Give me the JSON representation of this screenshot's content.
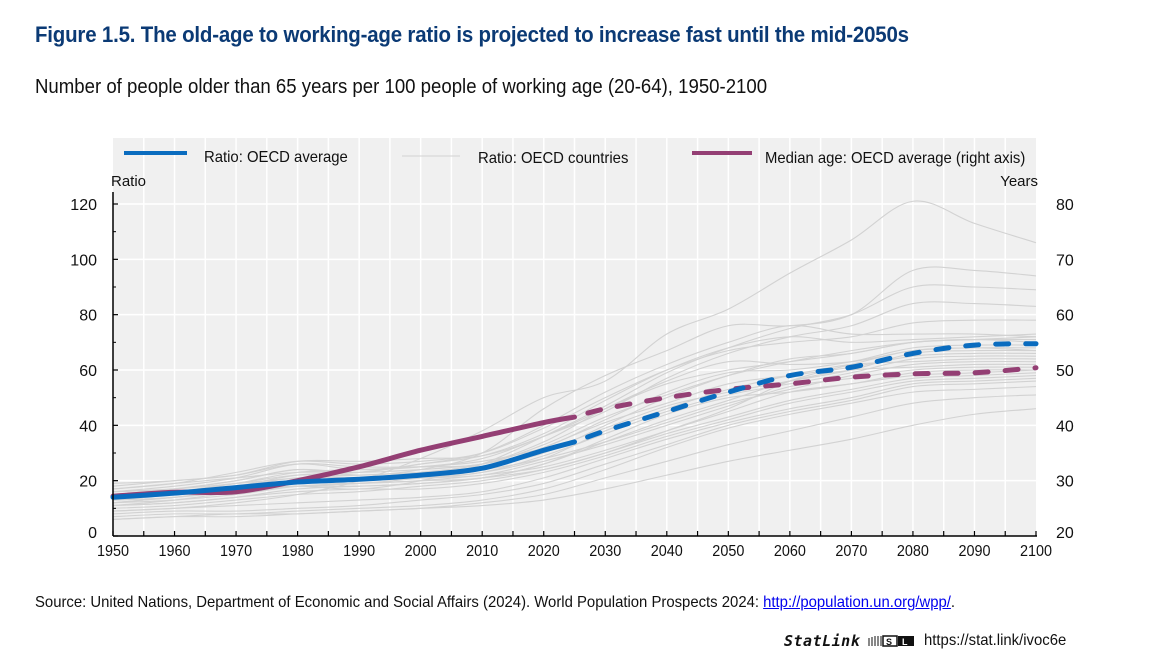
{
  "header": {
    "title": "Figure 1.5. The old-age to working-age ratio is projected to increase fast until the mid-2050s",
    "subtitle": "Number of people older than 65 years per 100 people of working age (20-64), 1950-2100"
  },
  "footer": {
    "source_prefix": "Source: United Nations, Department of Economic and Social Affairs (2024). World Population Prospects 2024: ",
    "source_link": "http://population.un.org/wpp/",
    "source_suffix": ".",
    "statlink_brand": "StatLink",
    "statlink_icon": "statlink-logo-icon",
    "statlink_url": "https://stat.link/ivoc6e"
  },
  "colors": {
    "oecd_average": "#0a6cbf",
    "oecd_countries": "#d2d2d2",
    "median_age": "#943f74",
    "plot_bg": "#f0f0f0",
    "grid": "#ffffff",
    "title": "#0b3a75"
  },
  "chart_data": {
    "type": "line",
    "title": "Figure 1.5. The old-age to working-age ratio is projected to increase fast until the mid-2050s",
    "subtitle": "Number of people older than 65 years per 100 people of working age (20-64), 1950-2100",
    "xlabel": "",
    "ylabel": "Ratio",
    "y2label": "Years",
    "xlim": [
      1950,
      2100
    ],
    "ylim": [
      0,
      120
    ],
    "y2lim": [
      20,
      80
    ],
    "x_ticks": [
      1950,
      1960,
      1970,
      1980,
      1990,
      2000,
      2010,
      2020,
      2030,
      2040,
      2050,
      2060,
      2070,
      2080,
      2090,
      2100
    ],
    "y_ticks": [
      0,
      20,
      40,
      60,
      80,
      100,
      120
    ],
    "y2_ticks": [
      20,
      30,
      40,
      50,
      60,
      70,
      80
    ],
    "grid": true,
    "legend_position": "top",
    "projection_start": 2025,
    "legend": [
      {
        "label": "Ratio: OECD average",
        "key": "oecd_average"
      },
      {
        "label": "Ratio: OECD countries",
        "key": "oecd_countries"
      },
      {
        "label": "Median age: OECD average (right axis)",
        "key": "median_age"
      }
    ],
    "x": [
      1950,
      1960,
      1970,
      1980,
      1990,
      2000,
      2010,
      2020,
      2025,
      2030,
      2040,
      2050,
      2060,
      2070,
      2080,
      2090,
      2100
    ],
    "series": [
      {
        "name": "Ratio: OECD average",
        "axis": "left",
        "values": [
          14,
          15.5,
          17.5,
          19.5,
          20.5,
          22,
          24.5,
          31,
          34,
          38,
          45,
          52,
          58,
          61,
          66,
          69,
          69.5
        ]
      },
      {
        "name": "Median age: OECD average (right axis)",
        "axis": "right",
        "values": [
          27.2,
          27.9,
          28,
          30,
          32.5,
          35.5,
          38,
          40.5,
          41.5,
          43,
          45,
          46.5,
          47.5,
          48.7,
          49.3,
          49.5,
          50.4
        ]
      }
    ],
    "countries": {
      "name": "Ratio: OECD countries",
      "axis": "left",
      "x": [
        1950,
        1960,
        1970,
        1980,
        1990,
        2000,
        2010,
        2020,
        2030,
        2040,
        2050,
        2060,
        2070,
        2080,
        2090,
        2100
      ],
      "values": [
        [
          9,
          10,
          12,
          15,
          20,
          28,
          38,
          50,
          56,
          73,
          82,
          95,
          107,
          121,
          113,
          106
        ],
        [
          16,
          17,
          20,
          24,
          22,
          24,
          30,
          46,
          58,
          67,
          76,
          76,
          80,
          96,
          96,
          94
        ],
        [
          14,
          15,
          17,
          18,
          17,
          20,
          26,
          36,
          47,
          59,
          68,
          75,
          80,
          90,
          90,
          89
        ],
        [
          18,
          20,
          22,
          26,
          24,
          25,
          28,
          36,
          45,
          57,
          66,
          72,
          76,
          84,
          84,
          83
        ],
        [
          17,
          19,
          23,
          27,
          26,
          27,
          30,
          39,
          50,
          60,
          67,
          70,
          72,
          77,
          78,
          78
        ],
        [
          15,
          17,
          20,
          24,
          23,
          26,
          29,
          37,
          49,
          60,
          68,
          72,
          70,
          71,
          72,
          73
        ],
        [
          13,
          15,
          18,
          22,
          23,
          26,
          30,
          40,
          52,
          62,
          70,
          76,
          73,
          73,
          73,
          72
        ],
        [
          19,
          20,
          22,
          27,
          27,
          28,
          29,
          36,
          46,
          55,
          60,
          63,
          66,
          70,
          71,
          70
        ],
        [
          16,
          18,
          21,
          26,
          25,
          25,
          26,
          33,
          43,
          51,
          58,
          63,
          67,
          70,
          71,
          71
        ],
        [
          14,
          16,
          19,
          23,
          24,
          25,
          27,
          32,
          42,
          52,
          59,
          60,
          63,
          68,
          69,
          69
        ],
        [
          11,
          13,
          16,
          20,
          21,
          23,
          26,
          34,
          46,
          56,
          63,
          62,
          63,
          67,
          68,
          68
        ],
        [
          17,
          19,
          21,
          23,
          23,
          24,
          26,
          31,
          39,
          47,
          52,
          56,
          60,
          66,
          67,
          67
        ],
        [
          12,
          14,
          16,
          18,
          19,
          21,
          24,
          32,
          41,
          48,
          55,
          58,
          61,
          65,
          66,
          66
        ],
        [
          15,
          16,
          18,
          21,
          21,
          21,
          23,
          29,
          37,
          45,
          51,
          55,
          59,
          64,
          65,
          65
        ],
        [
          13,
          14,
          17,
          20,
          20,
          21,
          23,
          28,
          38,
          46,
          53,
          58,
          62,
          63,
          64,
          64
        ],
        [
          14,
          16,
          19,
          22,
          22,
          23,
          24,
          28,
          34,
          41,
          48,
          53,
          58,
          62,
          63,
          63
        ],
        [
          12,
          14,
          16,
          19,
          19,
          20,
          21,
          26,
          34,
          42,
          49,
          56,
          60,
          61,
          62,
          62
        ],
        [
          13,
          15,
          17,
          19,
          20,
          21,
          22,
          27,
          33,
          40,
          47,
          54,
          57,
          60,
          61,
          61
        ],
        [
          11,
          12,
          14,
          17,
          18,
          19,
          21,
          26,
          35,
          44,
          50,
          52,
          55,
          59,
          60,
          60
        ],
        [
          12,
          13,
          15,
          18,
          19,
          20,
          22,
          25,
          31,
          38,
          45,
          52,
          55,
          58,
          59,
          60
        ],
        [
          10,
          11,
          13,
          15,
          16,
          18,
          20,
          24,
          30,
          37,
          43,
          49,
          53,
          57,
          58,
          59
        ],
        [
          11,
          12,
          14,
          16,
          17,
          17,
          19,
          23,
          29,
          36,
          42,
          48,
          52,
          56,
          57,
          58
        ],
        [
          9,
          10,
          11,
          12,
          13,
          14,
          16,
          21,
          28,
          35,
          41,
          46,
          50,
          55,
          56,
          57
        ],
        [
          8,
          9,
          9,
          10,
          11,
          13,
          15,
          19,
          26,
          33,
          40,
          45,
          49,
          54,
          55,
          56
        ],
        [
          7,
          8,
          8,
          9,
          10,
          11,
          13,
          17,
          24,
          32,
          39,
          44,
          48,
          52,
          53,
          54
        ],
        [
          6,
          7,
          8,
          8,
          9,
          10,
          12,
          15,
          21,
          27,
          33,
          38,
          43,
          48,
          50,
          51
        ],
        [
          6,
          7,
          7,
          8,
          9,
          10,
          11,
          13,
          17,
          22,
          27,
          31,
          35,
          40,
          44,
          46
        ],
        [
          14,
          15,
          16,
          18,
          18,
          19,
          21,
          24,
          30,
          38,
          46,
          56,
          62,
          67,
          68,
          67
        ],
        [
          16,
          17,
          19,
          21,
          22,
          23,
          25,
          30,
          40,
          50,
          58,
          64,
          66,
          70,
          71,
          72
        ]
      ]
    }
  }
}
